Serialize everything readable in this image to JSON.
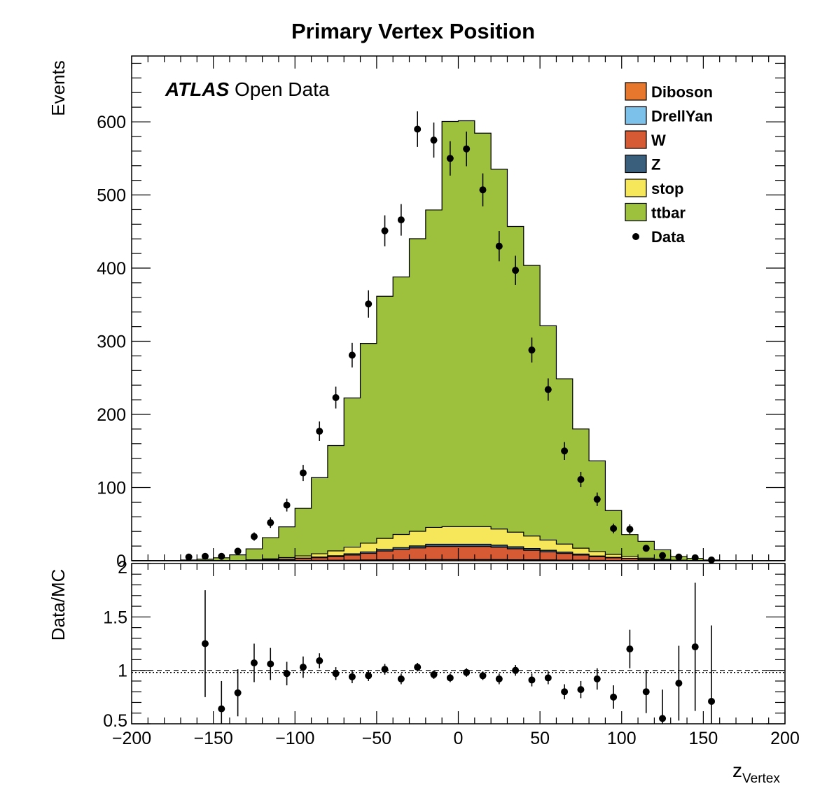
{
  "title": "Primary Vertex Position",
  "experiment": {
    "bold": "ATLAS",
    "rest": " Open Data"
  },
  "colors": {
    "Diboson": "#e8772e",
    "DrellYan": "#7cc1ea",
    "W": "#d65a33",
    "Z": "#3a5f7c",
    "stop": "#f5e65a",
    "ttbar": "#9dc13c",
    "Data": "#000000"
  },
  "legend": [
    {
      "name": "Diboson",
      "kind": "box"
    },
    {
      "name": "DrellYan",
      "kind": "box"
    },
    {
      "name": "W",
      "kind": "box"
    },
    {
      "name": "Z",
      "kind": "box"
    },
    {
      "name": "stop",
      "kind": "box"
    },
    {
      "name": "ttbar",
      "kind": "box"
    },
    {
      "name": "Data",
      "kind": "marker"
    }
  ],
  "chart_data": [
    {
      "type": "area",
      "subtype": "stacked-histogram",
      "title": "Primary Vertex Position",
      "ylabel": "Events",
      "xlabel": "",
      "xlim": [
        -200,
        200
      ],
      "ylim": [
        0,
        690
      ],
      "xticks": [
        -200,
        -150,
        -100,
        -50,
        0,
        50,
        100,
        150,
        200
      ],
      "yticks": [
        0,
        100,
        200,
        300,
        400,
        500,
        600
      ],
      "ytick_labels": [
        "0",
        "100",
        "200",
        "300",
        "400",
        "500",
        "600"
      ],
      "legend_position": "top-right",
      "bin_edges": [
        -200,
        -190,
        -180,
        -170,
        -160,
        -150,
        -140,
        -130,
        -120,
        -110,
        -100,
        -90,
        -80,
        -70,
        -60,
        -50,
        -40,
        -30,
        -20,
        -10,
        0,
        10,
        20,
        30,
        40,
        50,
        60,
        70,
        80,
        90,
        100,
        110,
        120,
        130,
        140,
        150,
        160,
        170,
        180,
        190,
        200
      ],
      "series": [
        {
          "name": "Diboson",
          "values": [
            0,
            0,
            0,
            0,
            0,
            0,
            0,
            0,
            0.2,
            0.3,
            0.4,
            0.5,
            0.6,
            0.8,
            1.0,
            1.2,
            1.3,
            1.4,
            1.5,
            1.5,
            1.5,
            1.5,
            1.4,
            1.3,
            1.2,
            1.0,
            0.9,
            0.7,
            0.5,
            0.4,
            0.3,
            0.2,
            0.1,
            0,
            0,
            0,
            0,
            0,
            0,
            0
          ]
        },
        {
          "name": "DrellYan",
          "values": [
            0,
            0,
            0,
            0,
            0,
            0,
            0,
            0,
            0,
            0,
            0,
            0,
            0,
            0,
            0,
            0,
            0,
            0,
            0,
            0,
            0,
            0,
            0,
            0,
            0,
            0,
            0,
            0,
            0,
            0,
            0,
            0,
            0,
            0,
            0,
            0,
            0,
            0,
            0,
            0
          ]
        },
        {
          "name": "W",
          "values": [
            0,
            0,
            0,
            0,
            0,
            0,
            0,
            0.5,
            0.8,
            1.5,
            2.5,
            3.5,
            5,
            7,
            9,
            12,
            14,
            16,
            18,
            18,
            18,
            18,
            17,
            15,
            13,
            11,
            9,
            7,
            5,
            3.5,
            2.5,
            1.5,
            0.8,
            0.5,
            0.3,
            0,
            0,
            0,
            0,
            0
          ]
        },
        {
          "name": "Z",
          "values": [
            0,
            0,
            0,
            0,
            0,
            0,
            0,
            0.2,
            0.3,
            0.5,
            0.7,
            1.0,
            1.3,
            1.7,
            2.0,
            2.3,
            2.6,
            2.8,
            3.0,
            3.0,
            3.0,
            3.0,
            2.9,
            2.7,
            2.5,
            2.2,
            1.8,
            1.4,
            1.0,
            0.7,
            0.4,
            0.3,
            0.2,
            0,
            0,
            0,
            0,
            0,
            0,
            0
          ]
        },
        {
          "name": "stop",
          "values": [
            0,
            0,
            0,
            0,
            0,
            0,
            0,
            0.5,
            1.2,
            2,
            3,
            4.5,
            6.5,
            9,
            12,
            15,
            18,
            20,
            23,
            24,
            24,
            24,
            22,
            20,
            17,
            14,
            11,
            8,
            6,
            4,
            2.5,
            1.5,
            0.8,
            0.3,
            0,
            0,
            0,
            0,
            0,
            0
          ]
        },
        {
          "name": "ttbar",
          "values": [
            0,
            0,
            0,
            1,
            2,
            4,
            8,
            15,
            29,
            42,
            65,
            104,
            144,
            204,
            273,
            331,
            352,
            400,
            434,
            554,
            555,
            538,
            492,
            418,
            370,
            293,
            226,
            163,
            124,
            60,
            30,
            23,
            13,
            5,
            3,
            1,
            0,
            0,
            0,
            0
          ]
        }
      ],
      "data_points": {
        "name": "Data",
        "x": [
          -165,
          -155,
          -145,
          -135,
          -125,
          -115,
          -105,
          -95,
          -85,
          -75,
          -65,
          -55,
          -45,
          -35,
          -25,
          -15,
          -5,
          5,
          15,
          25,
          35,
          45,
          55,
          65,
          75,
          85,
          95,
          105,
          115,
          125,
          135,
          145,
          155
        ],
        "y": [
          5,
          6,
          6,
          13,
          33,
          52,
          76,
          120,
          177,
          223,
          281,
          351,
          451,
          466,
          590,
          575,
          550,
          563,
          507,
          430,
          397,
          288,
          234,
          150,
          111,
          84,
          44,
          43,
          17,
          7,
          5,
          4,
          1
        ],
        "yerr": [
          2.2,
          2.4,
          2.4,
          3.6,
          5.7,
          7.2,
          8.7,
          11,
          13.3,
          14.9,
          16.8,
          18.7,
          21.2,
          21.6,
          24.3,
          24,
          23.5,
          23.7,
          22.5,
          20.7,
          19.9,
          17,
          15.3,
          12.2,
          10.5,
          9.2,
          6.6,
          6.6,
          4.1,
          2.6,
          2.2,
          2,
          1
        ]
      }
    },
    {
      "type": "scatter",
      "ylabel": "Data/MC",
      "xlabel": "z_Vertex",
      "xlabel_main": "z",
      "xlabel_sub": "Vertex",
      "xlim": [
        -200,
        200
      ],
      "ylim": [
        0.5,
        2
      ],
      "xticks": [
        -200,
        -150,
        -100,
        -50,
        0,
        50,
        100,
        150,
        200
      ],
      "xtick_labels": [
        "−200",
        "−150",
        "−100",
        "−50",
        "0",
        "50",
        "100",
        "150",
        "200"
      ],
      "yticks": [
        0.5,
        1,
        1.5,
        2
      ],
      "ytick_labels": [
        "0.5",
        "1",
        "1.5",
        "2"
      ],
      "reference_lines": [
        1.0,
        0.98
      ],
      "x": [
        -155,
        -145,
        -135,
        -125,
        -115,
        -105,
        -95,
        -85,
        -75,
        -65,
        -55,
        -45,
        -35,
        -25,
        -15,
        -5,
        5,
        15,
        25,
        35,
        45,
        55,
        65,
        75,
        85,
        95,
        105,
        115,
        125,
        135,
        145,
        155
      ],
      "y": [
        1.25,
        0.64,
        0.79,
        1.07,
        1.06,
        0.97,
        1.03,
        1.09,
        0.97,
        0.94,
        0.95,
        1.01,
        0.92,
        1.03,
        0.96,
        0.93,
        0.98,
        0.95,
        0.92,
        1.0,
        0.91,
        0.93,
        0.8,
        0.82,
        0.92,
        0.75,
        1.2,
        0.8,
        0.55,
        0.88,
        1.22,
        0.71
      ],
      "yerr": [
        0.5,
        0.26,
        0.22,
        0.18,
        0.15,
        0.11,
        0.1,
        0.07,
        0.06,
        0.06,
        0.05,
        0.05,
        0.05,
        0.04,
        0.04,
        0.04,
        0.04,
        0.04,
        0.05,
        0.05,
        0.06,
        0.06,
        0.07,
        0.08,
        0.1,
        0.11,
        0.18,
        0.2,
        0.27,
        0.35,
        0.6,
        0.71
      ]
    }
  ]
}
